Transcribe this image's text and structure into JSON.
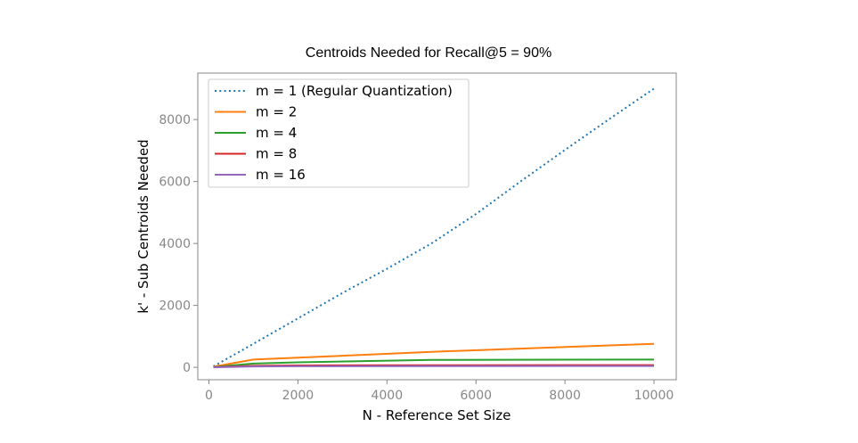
{
  "chart_data": {
    "type": "line",
    "title": "Centroids Needed for Recall@5 = 90%",
    "xlabel": "N - Reference Set Size",
    "ylabel": "k' - Sub Centroids Needed",
    "xlim": [
      -250,
      10500
    ],
    "ylim": [
      -400,
      9500
    ],
    "xticks": [
      0,
      2000,
      4000,
      6000,
      8000,
      10000
    ],
    "yticks": [
      0,
      2000,
      4000,
      6000,
      8000
    ],
    "legend_position": "upper-left",
    "series": [
      {
        "name": "m = 1 (Regular Quantization)",
        "color": "#1f77b4",
        "style": "dotted",
        "x": [
          100,
          1000,
          2000,
          3000,
          4000,
          5000,
          6000,
          7000,
          8000,
          9000,
          10000
        ],
        "y": [
          30,
          760,
          1580,
          2400,
          3180,
          4000,
          4950,
          6000,
          7020,
          8020,
          9000
        ]
      },
      {
        "name": "m = 2",
        "color": "#ff7f0e",
        "style": "solid",
        "x": [
          100,
          1000,
          2000,
          5000,
          10000
        ],
        "y": [
          20,
          250,
          310,
          500,
          760
        ]
      },
      {
        "name": "m = 4",
        "color": "#2ca02c",
        "style": "solid",
        "x": [
          100,
          1000,
          2000,
          5000,
          10000
        ],
        "y": [
          10,
          120,
          160,
          240,
          250
        ]
      },
      {
        "name": "m = 8",
        "color": "#d62728",
        "style": "solid",
        "x": [
          100,
          1000,
          2000,
          5000,
          10000
        ],
        "y": [
          5,
          50,
          60,
          70,
          72
        ]
      },
      {
        "name": "m = 16",
        "color": "#9467bd",
        "style": "solid",
        "x": [
          100,
          1000,
          2000,
          5000,
          10000
        ],
        "y": [
          3,
          30,
          35,
          40,
          42
        ]
      }
    ]
  }
}
